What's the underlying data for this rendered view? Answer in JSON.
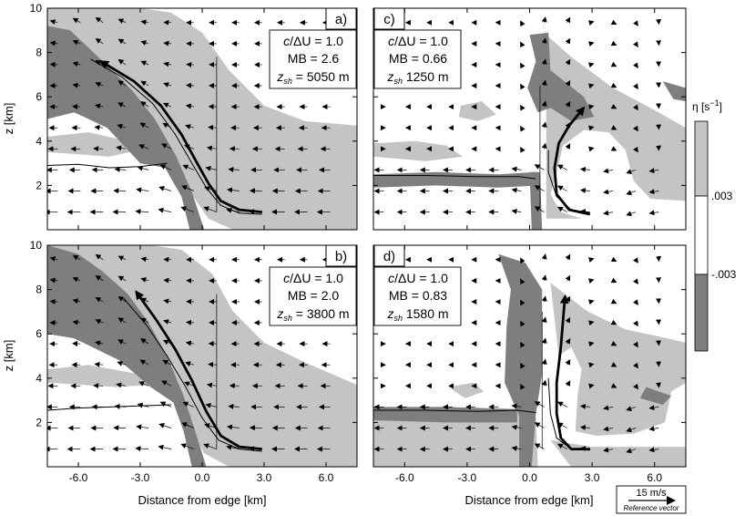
{
  "colors": {
    "light_gray": "#c4c4c4",
    "dark_gray": "#7e7e7e",
    "white": "#ffffff",
    "line": "#000000"
  },
  "chart_data": [
    {
      "type": "contour",
      "panel": "a)",
      "info": {
        "line1": "c/ΔU = 1.0",
        "line2": "MB = 2.6",
        "line3": "z",
        "line3_sub": "sh",
        "line3_val": "= 5050 m"
      },
      "xlim": [
        -7.5,
        7.5
      ],
      "ylim": [
        0,
        10
      ],
      "thick_trajectory": [
        [
          2.9,
          0.8
        ],
        [
          1.8,
          0.9
        ],
        [
          0.9,
          1.3
        ],
        [
          0.3,
          2.1
        ],
        [
          -0.3,
          3.1
        ],
        [
          -1.0,
          4.3
        ],
        [
          -2.0,
          5.6
        ],
        [
          -3.3,
          6.7
        ],
        [
          -4.9,
          7.6
        ]
      ],
      "thin_trajectory": [
        [
          2.9,
          0.7
        ],
        [
          1.8,
          0.75
        ],
        [
          0.9,
          1.1
        ],
        [
          0.2,
          1.9
        ],
        [
          -0.5,
          3.0
        ],
        [
          -1.3,
          4.3
        ],
        [
          -2.4,
          5.7
        ],
        [
          -3.9,
          6.9
        ],
        [
          -5.4,
          7.7
        ]
      ],
      "cold_pool_edge": [
        [
          -7.5,
          2.9
        ],
        [
          -6.0,
          2.95
        ],
        [
          -4.5,
          2.8
        ],
        [
          -3.0,
          2.85
        ],
        [
          -1.7,
          3.0
        ]
      ],
      "vertical_line_x": 0.7,
      "vertical_line_z": [
        0.8,
        7.8
      ]
    },
    {
      "type": "contour",
      "panel": "b)",
      "info": {
        "line1": "c/ΔU = 1.0",
        "line2": "MB = 2.0",
        "line3": "z",
        "line3_sub": "sh",
        "line3_val": "= 3800 m"
      },
      "xlim": [
        -7.5,
        7.5
      ],
      "ylim": [
        0,
        10
      ],
      "thick_trajectory": [
        [
          2.9,
          0.8
        ],
        [
          1.8,
          0.9
        ],
        [
          0.9,
          1.4
        ],
        [
          0.2,
          2.5
        ],
        [
          -0.5,
          3.9
        ],
        [
          -1.3,
          5.3
        ],
        [
          -2.2,
          6.6
        ],
        [
          -3.2,
          7.9
        ]
      ],
      "thin_trajectory": [
        [
          2.9,
          0.7
        ],
        [
          1.8,
          0.8
        ],
        [
          0.8,
          1.2
        ],
        [
          0.0,
          2.2
        ],
        [
          -0.8,
          3.6
        ],
        [
          -1.7,
          5.0
        ],
        [
          -2.7,
          6.4
        ],
        [
          -3.8,
          7.6
        ]
      ],
      "cold_pool_edge": [
        [
          -7.5,
          2.55
        ],
        [
          -6.0,
          2.65
        ],
        [
          -4.5,
          2.7
        ],
        [
          -3.0,
          2.75
        ],
        [
          -1.5,
          2.8
        ]
      ],
      "vertical_line_x": 0.7,
      "vertical_line_z": [
        0.8,
        7.8
      ]
    },
    {
      "type": "contour",
      "panel": "c)",
      "info": {
        "line1": "c/ΔU = 1.0",
        "line2": "MB = 0.66",
        "line3": "z",
        "line3_sub": "sh",
        "line3_val": "1250 m"
      },
      "xlim": [
        -7.5,
        7.5
      ],
      "ylim": [
        0,
        10
      ],
      "thick_trajectory": [
        [
          2.9,
          0.7
        ],
        [
          1.9,
          0.9
        ],
        [
          1.3,
          1.6
        ],
        [
          1.2,
          2.8
        ],
        [
          1.4,
          3.9
        ],
        [
          1.9,
          4.7
        ],
        [
          2.6,
          5.5
        ]
      ],
      "thin_trajectory": [
        [
          2.9,
          0.75
        ],
        [
          2.0,
          0.9
        ],
        [
          1.3,
          1.5
        ],
        [
          0.9,
          2.6
        ],
        [
          0.9,
          3.6
        ]
      ],
      "cold_pool_edge": [
        [
          -7.5,
          2.45
        ],
        [
          -5.0,
          2.45
        ],
        [
          -2.5,
          2.4
        ],
        [
          -0.5,
          2.4
        ],
        [
          0.3,
          2.3
        ]
      ],
      "vertical_line_x": 0.5,
      "vertical_line_z": [
        1.0,
        6.5
      ]
    },
    {
      "type": "contour",
      "panel": "d)",
      "info": {
        "line1": "c/ΔU = 1.0",
        "line2": "MB = 0.83",
        "line3": "z",
        "line3_sub": "sh",
        "line3_val": "1580 m"
      },
      "xlim": [
        -7.5,
        7.5
      ],
      "ylim": [
        0,
        10
      ],
      "thick_trajectory": [
        [
          2.9,
          0.8
        ],
        [
          2.0,
          0.8
        ],
        [
          1.5,
          1.3
        ],
        [
          1.3,
          2.4
        ],
        [
          1.3,
          3.8
        ],
        [
          1.5,
          5.4
        ],
        [
          1.7,
          7.7
        ]
      ],
      "thin_trajectory": [
        [
          2.9,
          0.75
        ],
        [
          2.0,
          0.8
        ],
        [
          1.3,
          1.3
        ],
        [
          1.0,
          2.4
        ],
        [
          0.9,
          4.0
        ]
      ],
      "cold_pool_edge": [
        [
          -7.5,
          2.55
        ],
        [
          -5.0,
          2.55
        ],
        [
          -2.5,
          2.5
        ],
        [
          -0.6,
          2.55
        ],
        [
          0.3,
          2.45
        ]
      ],
      "vertical_line_x": 0.6,
      "vertical_line_z": [
        0.8,
        7.0
      ]
    }
  ],
  "axes": {
    "xlabel": "Distance from edge [km]",
    "ylabel": "z [km]",
    "x_ticks": [
      "-6.0",
      "-3.0",
      "0.0",
      "3.0",
      "6.0"
    ],
    "x_tick_values": [
      -6,
      -3,
      0,
      3,
      6
    ],
    "y_ticks": [
      "2",
      "4",
      "6",
      "8",
      "10"
    ],
    "y_tick_values": [
      2,
      4,
      6,
      8,
      10
    ]
  },
  "colorbar": {
    "title": "η [s",
    "title_sup": "−1",
    "title_end": "]",
    "label_upper": ".003",
    "label_lower": "-.003"
  },
  "reference_vector": {
    "label": "15 m/s",
    "caption": "Reference vector"
  }
}
